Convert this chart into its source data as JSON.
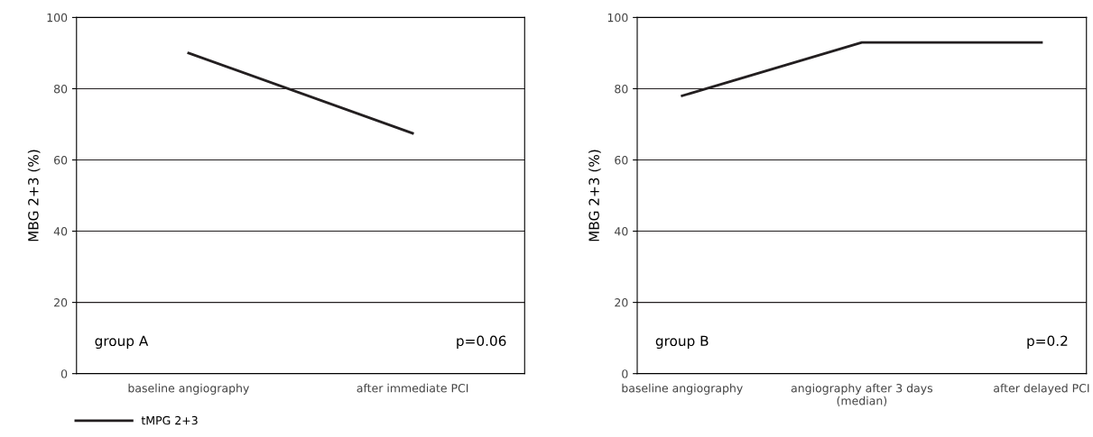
{
  "chart_data": [
    {
      "type": "line",
      "categories": [
        "baseline angiography",
        "after immediate PCI"
      ],
      "ylabel": "MBG 2+3 (%)",
      "ylim": [
        0,
        100
      ],
      "yticks": [
        0,
        20,
        40,
        60,
        80,
        100
      ],
      "grid": "y",
      "legend": "bottom",
      "marker": "none",
      "series": [
        {
          "name": "tMPG 2+3",
          "color": "#231f20",
          "values": [
            90,
            67.5
          ]
        }
      ],
      "annotations": [
        "group A",
        "p=0.06"
      ]
    },
    {
      "type": "line",
      "categories": [
        "baseline angiography",
        "angiography after 3 days\n(median)",
        "after delayed PCI"
      ],
      "ylabel": "MBG 2+3 (%)",
      "ylim": [
        0,
        100
      ],
      "yticks": [
        0,
        20,
        40,
        60,
        80,
        100
      ],
      "grid": "y",
      "marker": "none",
      "series": [
        {
          "color": "#231f20",
          "values": [
            78,
            93,
            93
          ]
        }
      ],
      "annotations": [
        "group B",
        "p=0.2"
      ]
    }
  ]
}
